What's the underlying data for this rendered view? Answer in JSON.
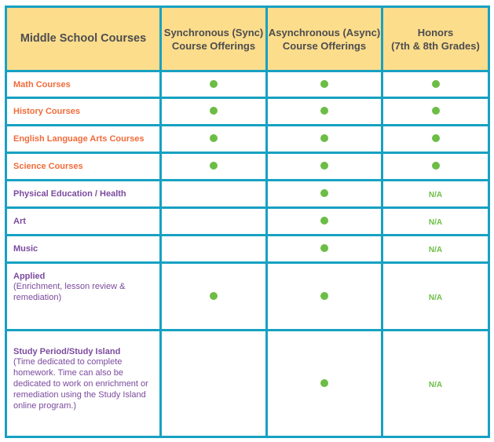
{
  "headers": [
    "Middle School Courses",
    "Synchronous (Sync) Course Offerings",
    "Asynchronous (Async) Course Offerings",
    "Honors (7th & 8th Grades)"
  ],
  "header_lines": {
    "sync": [
      "Synchronous (Sync)",
      "Course Offerings"
    ],
    "async": [
      "Asynchronous (Async)",
      "Course Offerings"
    ],
    "honors": [
      "Honors",
      "(7th & 8th Grades)"
    ]
  },
  "colors": {
    "border": "#17a1c2",
    "header_bg": "#fcdd8c",
    "orange": "#f26b3a",
    "purple": "#7b4a9e",
    "dot": "#6cbd45"
  },
  "rows": [
    {
      "name": "Math Courses",
      "sync": true,
      "async": true,
      "honors": "dot"
    },
    {
      "name": "History Courses",
      "sync": true,
      "async": true,
      "honors": "dot"
    },
    {
      "name": "English Language Arts Courses",
      "sync": true,
      "async": true,
      "honors": "dot"
    },
    {
      "name": "Science Courses",
      "sync": true,
      "async": true,
      "honors": "dot"
    },
    {
      "name": "Physical Education / Health",
      "sync": false,
      "async": true,
      "honors": "N/A"
    },
    {
      "name": "Art",
      "sync": false,
      "async": true,
      "honors": "N/A"
    },
    {
      "name": "Music",
      "sync": false,
      "async": true,
      "honors": "N/A"
    },
    {
      "name": "Applied",
      "desc": "(Enrichment, lesson review & remediation)",
      "sync": true,
      "async": true,
      "honors": "N/A"
    },
    {
      "name": "Study Period/Study Island",
      "desc": "(Time dedicated to complete homework.  Time can also be dedicated to work on enrichment or remediation using the Study Island online program.)",
      "sync": false,
      "async": true,
      "honors": "N/A"
    }
  ]
}
